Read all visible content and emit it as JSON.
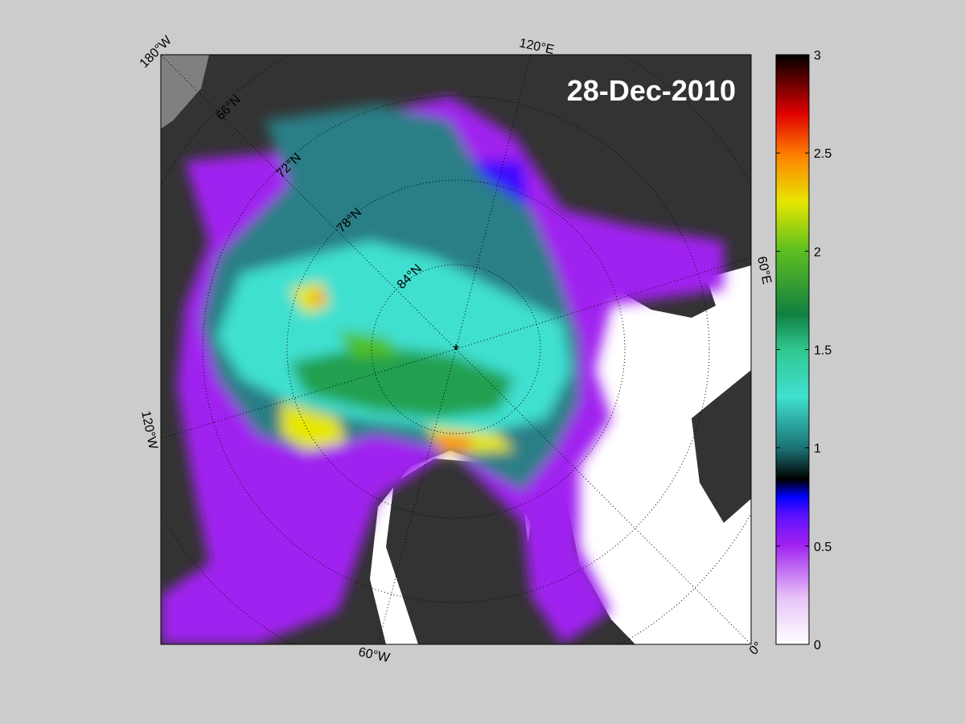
{
  "map": {
    "date_label": "28-Dec-2010",
    "longitude_labels": [
      "180°W",
      "120°E",
      "60°E",
      "0°",
      "60°W",
      "120°W"
    ],
    "latitude_labels": [
      "66°N",
      "72°N",
      "78°N",
      "84°N"
    ],
    "pole_marker": "*"
  },
  "colorbar": {
    "min": 0,
    "max": 3,
    "ticks": [
      "0",
      "0.5",
      "1",
      "1.5",
      "2",
      "2.5",
      "3"
    ],
    "colors": [
      "#ffffff",
      "#d99cf2",
      "#a020f0",
      "#2a00ff",
      "#000000",
      "#1a7e7e",
      "#40e0d0",
      "#20b050",
      "#22a000",
      "#e6e600",
      "#ff7f00",
      "#e00000",
      "#000000"
    ]
  },
  "colors": {
    "background": "#cccccc",
    "land": "#333333",
    "land_fringe": "#808080",
    "open_water": "#ffffff"
  }
}
